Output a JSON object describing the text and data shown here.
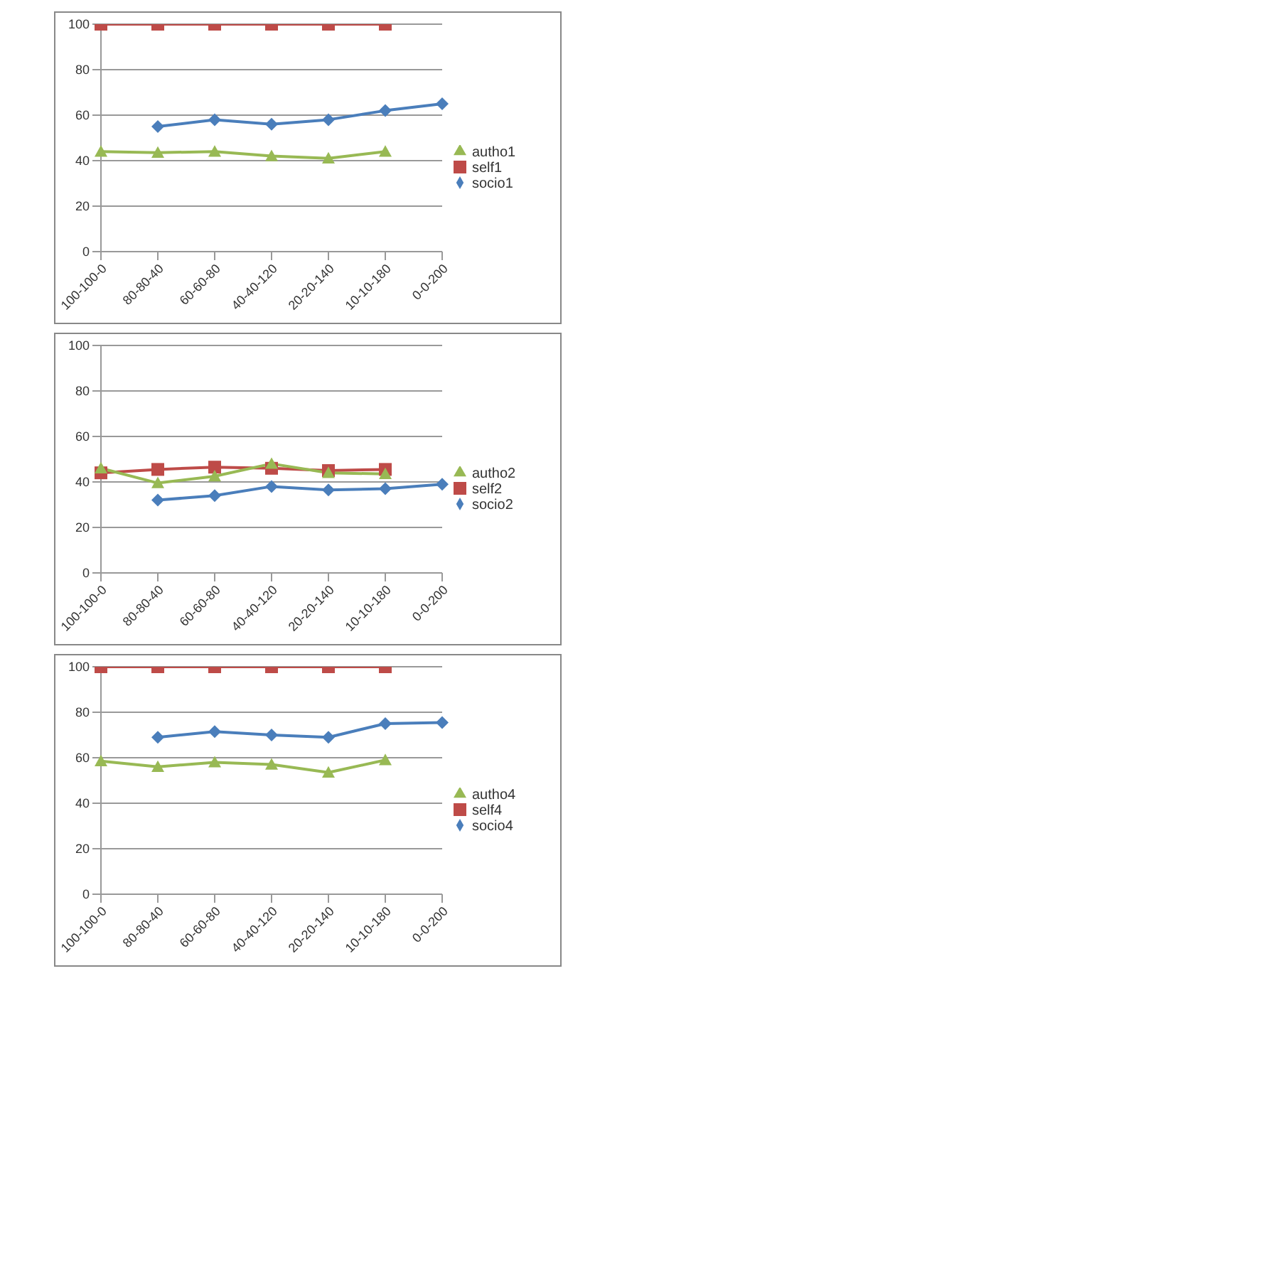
{
  "chart_data": [
    {
      "type": "line",
      "categories": [
        "100-100-0",
        "80-80-40",
        "60-60-80",
        "40-40-120",
        "20-20-140",
        "10-10-180",
        "0-0-200"
      ],
      "ylim": [
        0,
        100
      ],
      "yticks": [
        0,
        20,
        40,
        60,
        80,
        100
      ],
      "grid": "y",
      "legend": "right",
      "series": [
        {
          "name": "socio1",
          "color": "#4a7ebb",
          "marker": "diamond",
          "values": [
            null,
            55,
            58,
            56,
            58,
            62,
            65
          ]
        },
        {
          "name": "self1",
          "color": "#be4b48",
          "marker": "square",
          "values": [
            100,
            100,
            100,
            100,
            100,
            100,
            null
          ]
        },
        {
          "name": "autho1",
          "color": "#98b954",
          "marker": "triangle",
          "values": [
            44,
            43.5,
            44,
            42,
            41,
            44,
            null
          ]
        }
      ]
    },
    {
      "type": "line",
      "categories": [
        "100-100-0",
        "80-80-40",
        "60-60-80",
        "40-40-120",
        "20-20-140",
        "10-10-180",
        "0-0-200"
      ],
      "ylim": [
        0,
        100
      ],
      "yticks": [
        0,
        20,
        40,
        60,
        80,
        100
      ],
      "grid": "y",
      "legend": "right",
      "series": [
        {
          "name": "socio2",
          "color": "#4a7ebb",
          "marker": "diamond",
          "values": [
            null,
            32,
            34,
            38,
            36.5,
            37,
            39
          ]
        },
        {
          "name": "self2",
          "color": "#be4b48",
          "marker": "square",
          "values": [
            44,
            45.5,
            46.5,
            46,
            45,
            45.5,
            null
          ]
        },
        {
          "name": "autho2",
          "color": "#98b954",
          "marker": "triangle",
          "values": [
            46,
            39.5,
            42.5,
            48,
            44,
            43.5,
            null
          ]
        }
      ]
    },
    {
      "type": "line",
      "categories": [
        "100-100-0",
        "80-80-40",
        "60-60-80",
        "40-40-120",
        "20-20-140",
        "10-10-180",
        "0-0-200"
      ],
      "ylim": [
        0,
        100
      ],
      "yticks": [
        0,
        20,
        40,
        60,
        80,
        100
      ],
      "grid": "y",
      "legend": "right",
      "series": [
        {
          "name": "socio4",
          "color": "#4a7ebb",
          "marker": "diamond",
          "values": [
            null,
            69,
            71.5,
            70,
            69,
            75,
            75.5
          ]
        },
        {
          "name": "self4",
          "color": "#be4b48",
          "marker": "square",
          "values": [
            100,
            100,
            100,
            100,
            100,
            100,
            null
          ]
        },
        {
          "name": "autho4",
          "color": "#98b954",
          "marker": "triangle",
          "values": [
            58.5,
            56,
            58,
            57,
            53.5,
            59,
            null
          ]
        }
      ]
    }
  ]
}
